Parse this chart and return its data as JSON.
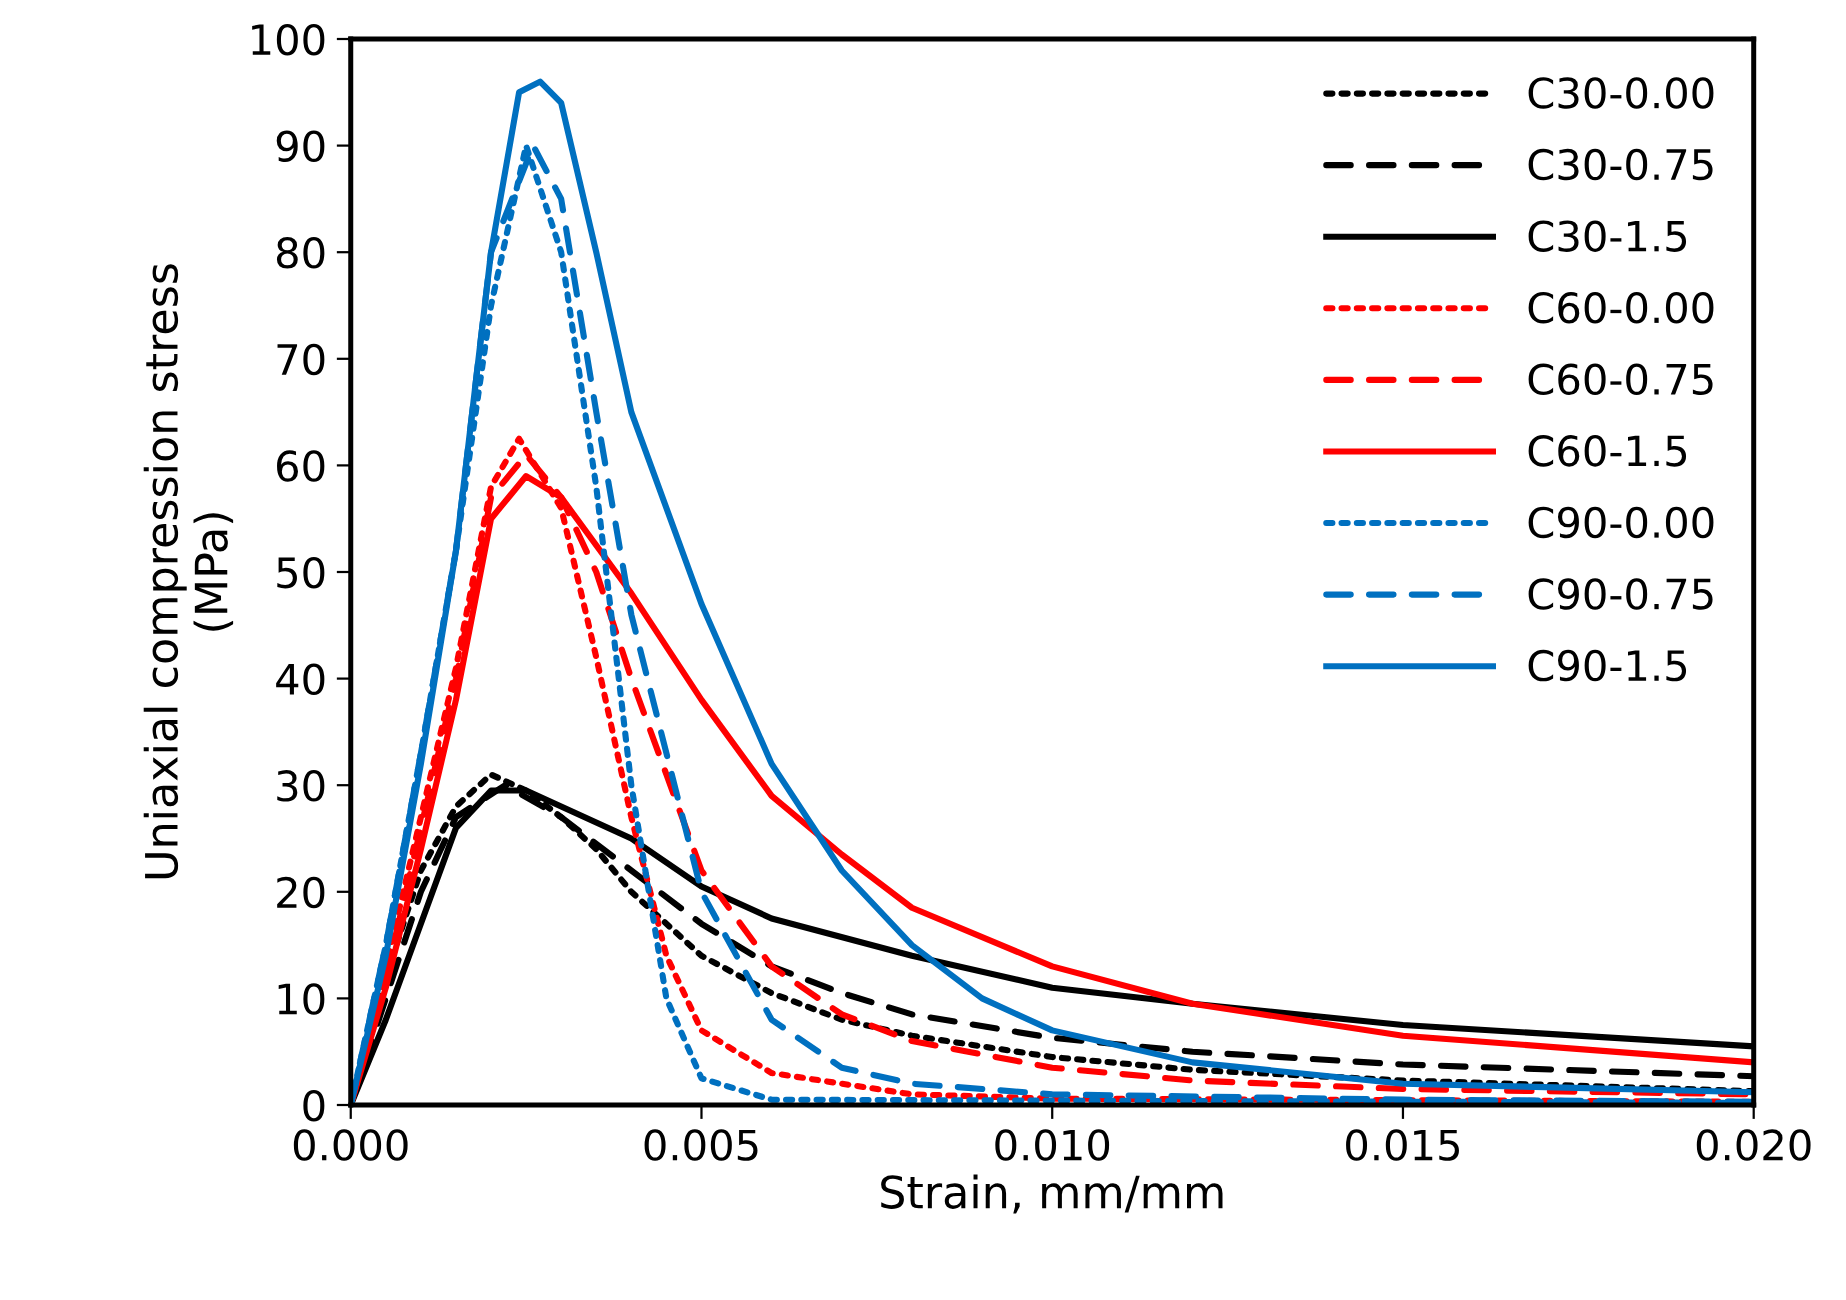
{
  "chart_data": {
    "type": "line",
    "xlabel": "Strain, mm/mm",
    "ylabel": "Uniaxial compression stress\n(MPa)",
    "xlim": [
      0,
      0.02
    ],
    "xticks": [
      {
        "value": 0,
        "label": "0.000"
      },
      {
        "value": 0.005,
        "label": "0.005"
      },
      {
        "value": 0.01,
        "label": "0.010"
      },
      {
        "value": 0.015,
        "label": "0.015"
      },
      {
        "value": 0.02,
        "label": "0.020"
      }
    ],
    "ylim": [
      0,
      100
    ],
    "yticks": [
      0,
      10,
      20,
      30,
      40,
      50,
      60,
      70,
      80,
      90,
      100
    ],
    "grid": false,
    "legend": "top right",
    "marker": "none",
    "series": [
      {
        "name": "C30-0.00",
        "color": "#000000",
        "line_style": "dotted",
        "x": [
          0,
          0.0005,
          0.001,
          0.0015,
          0.002,
          0.0025,
          0.003,
          0.0035,
          0.004,
          0.005,
          0.006,
          0.007,
          0.008,
          0.01,
          0.012,
          0.015,
          0.02
        ],
        "values": [
          0,
          12,
          22,
          28,
          31,
          29.5,
          27,
          24,
          20,
          14,
          10.5,
          8,
          6.5,
          4.5,
          3.3,
          2.3,
          1.3
        ]
      },
      {
        "name": "C30-0.75",
        "color": "#000000",
        "line_style": "dashed",
        "x": [
          0,
          0.0005,
          0.001,
          0.0015,
          0.0022,
          0.003,
          0.004,
          0.005,
          0.006,
          0.007,
          0.008,
          0.01,
          0.012,
          0.015,
          0.02
        ],
        "values": [
          0,
          10,
          20,
          27,
          30,
          27,
          22,
          17,
          13,
          10.5,
          8.5,
          6.3,
          5,
          3.8,
          2.7
        ]
      },
      {
        "name": "C30-1.5",
        "color": "#000000",
        "line_style": "solid",
        "x": [
          0,
          0.0005,
          0.001,
          0.0015,
          0.002,
          0.0025,
          0.003,
          0.004,
          0.005,
          0.006,
          0.008,
          0.01,
          0.012,
          0.015,
          0.02
        ],
        "values": [
          0,
          8,
          17,
          26,
          29.5,
          29.5,
          28,
          25,
          20.5,
          17.5,
          14,
          11,
          9.5,
          7.5,
          5.5
        ]
      },
      {
        "name": "C60-0.00",
        "color": "#ff0000",
        "line_style": "dotted",
        "x": [
          0,
          0.0005,
          0.001,
          0.0015,
          0.002,
          0.0024,
          0.003,
          0.0035,
          0.004,
          0.0045,
          0.005,
          0.006,
          0.008,
          0.01,
          0.02
        ],
        "values": [
          0,
          13,
          27,
          41,
          58,
          62.5,
          56,
          42,
          27,
          14,
          7,
          3,
          1,
          0.6,
          0.3
        ]
      },
      {
        "name": "C60-0.75",
        "color": "#ff0000",
        "line_style": "dashed",
        "x": [
          0,
          0.0005,
          0.001,
          0.0015,
          0.002,
          0.0025,
          0.003,
          0.0035,
          0.004,
          0.0045,
          0.005,
          0.006,
          0.007,
          0.008,
          0.01,
          0.012,
          0.015,
          0.02
        ],
        "values": [
          0,
          12,
          26,
          40,
          57,
          61,
          57,
          50,
          40,
          31,
          22,
          13,
          8.5,
          6,
          3.5,
          2.3,
          1.5,
          1
        ]
      },
      {
        "name": "C60-1.5",
        "color": "#ff0000",
        "line_style": "solid",
        "x": [
          0,
          0.0005,
          0.001,
          0.0015,
          0.002,
          0.0025,
          0.003,
          0.004,
          0.005,
          0.006,
          0.007,
          0.008,
          0.01,
          0.012,
          0.015,
          0.02
        ],
        "values": [
          0,
          11,
          24,
          38,
          55,
          59,
          57,
          48,
          38,
          29,
          23.5,
          18.5,
          13,
          9.5,
          6.5,
          4
        ]
      },
      {
        "name": "C90-0.00",
        "color": "#0070c0",
        "line_style": "dotted",
        "x": [
          0,
          0.0005,
          0.001,
          0.0015,
          0.002,
          0.0025,
          0.003,
          0.0035,
          0.004,
          0.0045,
          0.005,
          0.006,
          0.02
        ],
        "values": [
          0,
          15,
          33,
          52,
          75,
          90,
          80,
          58,
          30,
          10,
          2.5,
          0.5,
          0.2
        ]
      },
      {
        "name": "C90-0.75",
        "color": "#0070c0",
        "line_style": "dashed",
        "x": [
          0,
          0.0005,
          0.001,
          0.0015,
          0.002,
          0.0026,
          0.003,
          0.0035,
          0.004,
          0.005,
          0.006,
          0.007,
          0.008,
          0.01,
          0.015,
          0.02
        ],
        "values": [
          0,
          15,
          33,
          52,
          80,
          90,
          85,
          65,
          46,
          20,
          8,
          3.5,
          2,
          1,
          0.5,
          0.3
        ]
      },
      {
        "name": "C90-1.5",
        "color": "#0070c0",
        "line_style": "solid",
        "x": [
          0,
          0.0005,
          0.001,
          0.0015,
          0.002,
          0.0024,
          0.0027,
          0.003,
          0.0035,
          0.004,
          0.005,
          0.006,
          0.007,
          0.008,
          0.009,
          0.01,
          0.012,
          0.015,
          0.02
        ],
        "values": [
          0,
          14,
          32,
          52,
          80,
          95,
          96,
          94,
          80,
          65,
          47,
          32,
          22,
          15,
          10,
          7,
          4,
          2,
          1.2
        ]
      }
    ]
  }
}
